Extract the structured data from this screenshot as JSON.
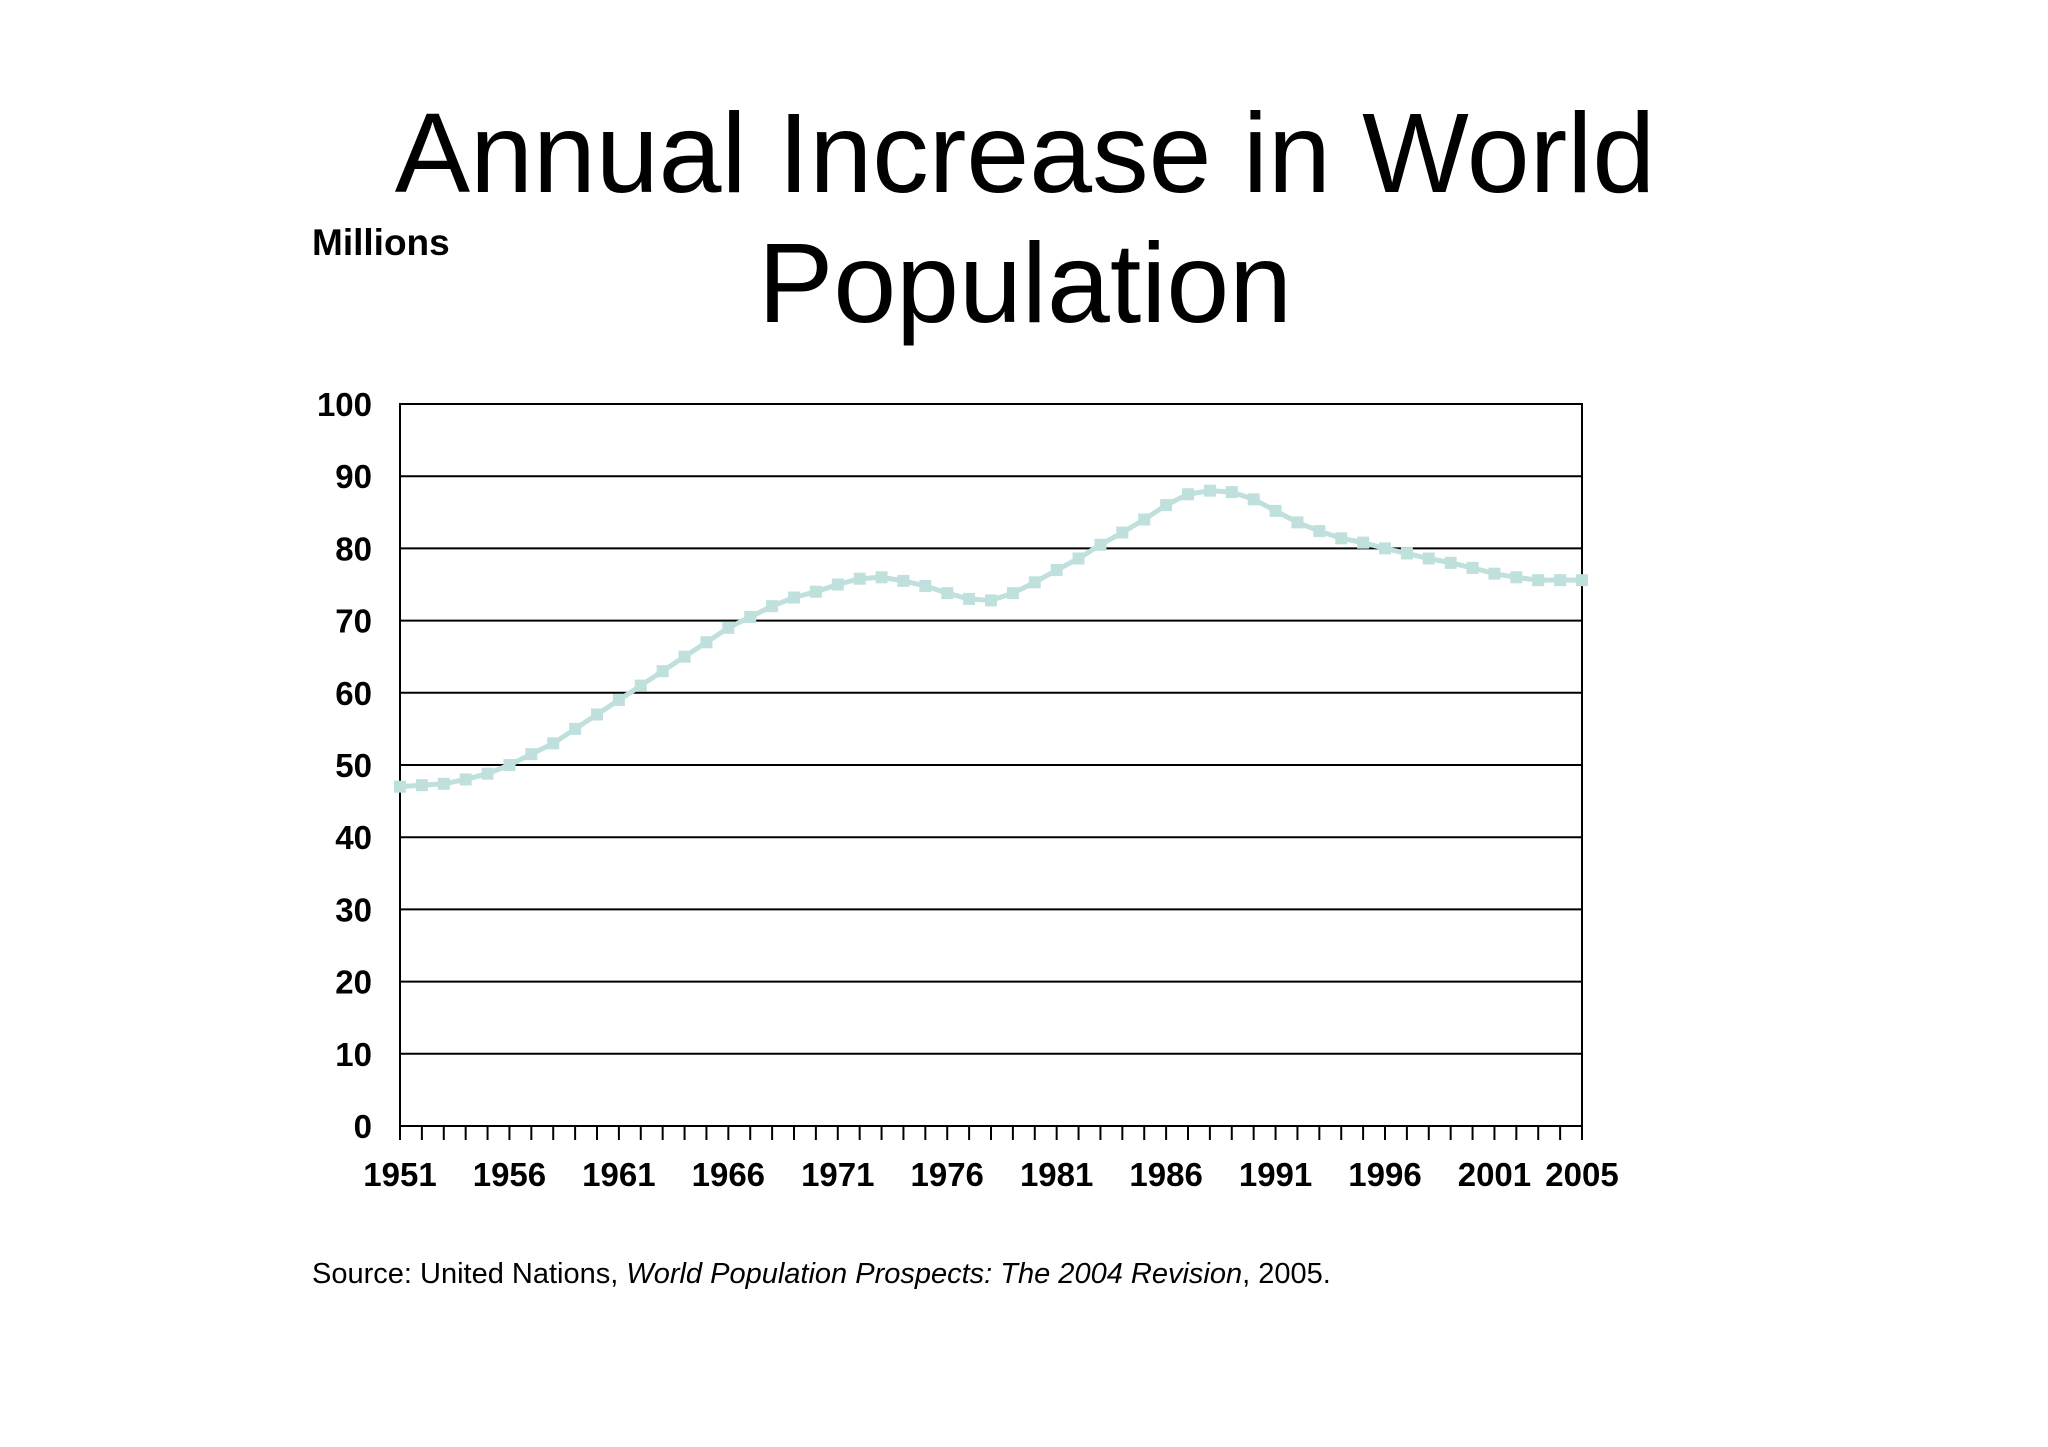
{
  "chart_data": {
    "type": "line",
    "title": "Annual Increase in World Population",
    "ylabel": "Millions",
    "xlabel": "",
    "ylim": [
      0,
      100
    ],
    "xlim": [
      1951,
      2005
    ],
    "yticks": [
      0,
      10,
      20,
      30,
      40,
      50,
      60,
      70,
      80,
      90,
      100
    ],
    "xticks": [
      1951,
      1956,
      1961,
      1966,
      1971,
      1976,
      1981,
      1986,
      1991,
      1996,
      2001,
      2005
    ],
    "grid": true,
    "line_color": "#bfe0dc",
    "series": [
      {
        "name": "",
        "x": [
          1951,
          1952,
          1953,
          1954,
          1955,
          1956,
          1957,
          1958,
          1959,
          1960,
          1961,
          1962,
          1963,
          1964,
          1965,
          1966,
          1967,
          1968,
          1969,
          1970,
          1971,
          1972,
          1973,
          1974,
          1975,
          1976,
          1977,
          1978,
          1979,
          1980,
          1981,
          1982,
          1983,
          1984,
          1985,
          1986,
          1987,
          1988,
          1989,
          1990,
          1991,
          1992,
          1993,
          1994,
          1995,
          1996,
          1997,
          1998,
          1999,
          2000,
          2001,
          2002,
          2003,
          2004,
          2005
        ],
        "values": [
          47,
          47.2,
          47.4,
          48,
          48.8,
          50,
          51.5,
          53,
          55,
          57,
          59,
          61,
          63,
          65,
          67,
          69,
          70.5,
          72,
          73.2,
          74,
          75,
          75.8,
          76,
          75.5,
          74.8,
          73.8,
          73,
          72.8,
          73.8,
          75.3,
          77,
          78.6,
          80.5,
          82.2,
          84,
          86,
          87.5,
          88,
          87.8,
          86.8,
          85.2,
          83.6,
          82.4,
          81.4,
          80.8,
          80,
          79.3,
          78.6,
          78,
          77.3,
          76.5,
          76,
          75.6,
          75.6,
          75.6
        ]
      }
    ],
    "source_prefix": "Source: United Nations, ",
    "source_title": "World Population Prospects: The 2004 Revision",
    "source_suffix": ", 2005."
  }
}
